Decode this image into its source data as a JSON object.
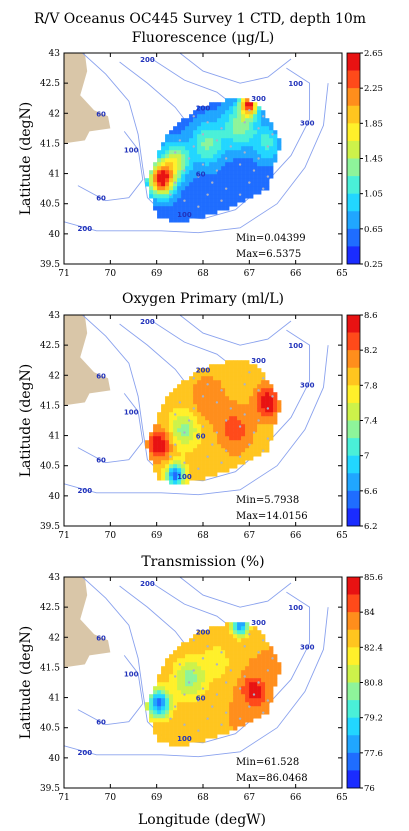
{
  "figure": {
    "title": "R/V Oceanus OC445 Survey 1 CTD, depth 10m",
    "xlabel": "Longitude (degW)"
  },
  "palette": [
    "#1a2cff",
    "#1f6dff",
    "#20a6ff",
    "#22d6ff",
    "#4af0d8",
    "#8ef49a",
    "#cdf24a",
    "#fff02a",
    "#ffc51f",
    "#ff8e1c",
    "#ff4a1a",
    "#e81212"
  ],
  "colors": {
    "land": "#d9c6a8",
    "isobath": "#8aa2ee",
    "isobath_label": "#2233bb",
    "station": "#aab2c8"
  },
  "map_labels": {
    "contour_labels": [
      {
        "lon": 69.2,
        "lat": 42.85,
        "text": "200"
      },
      {
        "lon": 66.8,
        "lat": 42.2,
        "text": "300"
      },
      {
        "lon": 66.0,
        "lat": 42.45,
        "text": "100"
      },
      {
        "lon": 65.75,
        "lat": 41.8,
        "text": "300"
      },
      {
        "lon": 68.0,
        "lat": 42.05,
        "text": "200"
      },
      {
        "lon": 70.2,
        "lat": 41.95,
        "text": "60"
      },
      {
        "lon": 69.55,
        "lat": 41.35,
        "text": "100"
      },
      {
        "lon": 68.05,
        "lat": 40.95,
        "text": "60"
      },
      {
        "lon": 70.2,
        "lat": 40.55,
        "text": "60"
      },
      {
        "lon": 68.4,
        "lat": 40.28,
        "text": "100"
      },
      {
        "lon": 70.55,
        "lat": 40.05,
        "text": "200"
      }
    ]
  },
  "chart_data": [
    {
      "type": "heatmap",
      "title": "Fluorescence (μg/L)",
      "ylabel": "Latitude (degN)",
      "x_ticks": [
        "71",
        "70",
        "69",
        "68",
        "67",
        "66",
        "65"
      ],
      "y_ticks": [
        "43",
        "42.5",
        "42",
        "41.5",
        "41",
        "40.5",
        "40",
        "39.5"
      ],
      "xlim": [
        71,
        65
      ],
      "ylim": [
        39.5,
        43
      ],
      "colorbar_ticks": [
        "2.65",
        "2.25",
        "1.85",
        "1.45",
        "1.05",
        "0.65",
        "0.25"
      ],
      "colorbar_range": [
        0.25,
        2.65
      ],
      "min_label": "Min=0.04399",
      "max_label": "Max=6.5375",
      "blobs": [
        {
          "lon": 68.9,
          "lat": 40.9,
          "s": 0.22,
          "v": 2.6
        },
        {
          "lon": 68.6,
          "lat": 41.2,
          "s": 0.25,
          "v": 1.6
        },
        {
          "lon": 67.9,
          "lat": 41.5,
          "s": 0.3,
          "v": 1.3
        },
        {
          "lon": 67.2,
          "lat": 41.8,
          "s": 0.3,
          "v": 1.4
        },
        {
          "lon": 67.0,
          "lat": 42.15,
          "s": 0.15,
          "v": 2.4
        },
        {
          "lon": 66.6,
          "lat": 41.5,
          "s": 0.25,
          "v": 1.1
        }
      ],
      "base": 0.55
    },
    {
      "type": "heatmap",
      "title": "Oxygen Primary (ml/L)",
      "ylabel": "Latitude (degN)",
      "x_ticks": [
        "71",
        "70",
        "69",
        "68",
        "67",
        "66",
        "65"
      ],
      "y_ticks": [
        "43",
        "42.5",
        "42",
        "41.5",
        "41",
        "40.5",
        "40",
        "39.5"
      ],
      "xlim": [
        71,
        65
      ],
      "ylim": [
        39.5,
        43
      ],
      "colorbar_ticks": [
        "8.6",
        "8.2",
        "7.8",
        "7.4",
        "7",
        "6.6",
        "6.2"
      ],
      "colorbar_range": [
        6.2,
        8.6
      ],
      "min_label": "Min=5.7938",
      "max_label": "Max=14.0156",
      "blobs": [
        {
          "lon": 68.95,
          "lat": 40.85,
          "s": 0.2,
          "v": 8.6
        },
        {
          "lon": 66.6,
          "lat": 41.55,
          "s": 0.22,
          "v": 8.6
        },
        {
          "lon": 68.4,
          "lat": 41.1,
          "s": 0.25,
          "v": 7.3
        },
        {
          "lon": 67.9,
          "lat": 41.6,
          "s": 0.3,
          "v": 8.2
        },
        {
          "lon": 67.3,
          "lat": 41.1,
          "s": 0.3,
          "v": 8.3
        },
        {
          "lon": 68.6,
          "lat": 40.35,
          "s": 0.15,
          "v": 6.4
        }
      ],
      "base": 7.9
    },
    {
      "type": "heatmap",
      "title": "Transmission (%)",
      "ylabel": "Latitude (degN)",
      "x_ticks": [
        "71",
        "70",
        "69",
        "68",
        "67",
        "66",
        "65"
      ],
      "y_ticks": [
        "43",
        "42.5",
        "42",
        "41.5",
        "41",
        "40.5",
        "40",
        "39.5"
      ],
      "xlim": [
        71,
        65
      ],
      "ylim": [
        39.5,
        43
      ],
      "colorbar_ticks": [
        "85.6",
        "84",
        "82.4",
        "80.8",
        "79.2",
        "77.6",
        "76"
      ],
      "colorbar_range": [
        76,
        85.6
      ],
      "min_label": "Min=61.528",
      "max_label": "Max=86.0468",
      "blobs": [
        {
          "lon": 68.95,
          "lat": 40.9,
          "s": 0.2,
          "v": 77.2
        },
        {
          "lon": 68.3,
          "lat": 41.3,
          "s": 0.3,
          "v": 80.5
        },
        {
          "lon": 67.7,
          "lat": 41.6,
          "s": 0.3,
          "v": 82.0
        },
        {
          "lon": 66.9,
          "lat": 41.1,
          "s": 0.2,
          "v": 85.5
        },
        {
          "lon": 67.2,
          "lat": 42.2,
          "s": 0.15,
          "v": 77.5
        }
      ],
      "base": 83.2
    }
  ]
}
